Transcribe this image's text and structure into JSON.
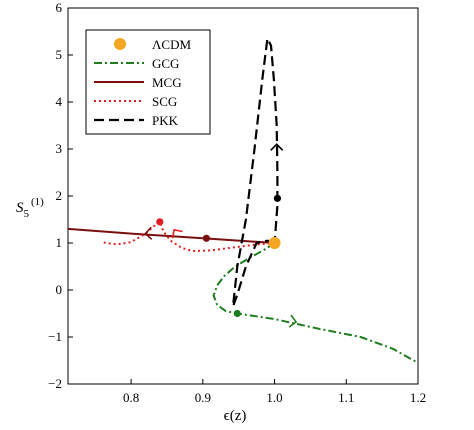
{
  "chart_data": {
    "type": "line",
    "title": "",
    "xlabel": "ϵ(z)",
    "ylabel": "S",
    "ylabel_sub": "5",
    "ylabel_sup": "(1)",
    "xlim": [
      0.712,
      1.2
    ],
    "ylim": [
      -2,
      6
    ],
    "xticks": [
      0.8,
      0.9,
      1.0,
      1.1,
      1.2
    ],
    "xtick_labels": [
      "0.8",
      "0.9",
      "1.0",
      "1.1",
      "1.2"
    ],
    "yticks": [
      -2,
      -1,
      0,
      1,
      2,
      3,
      4,
      5,
      6
    ],
    "ytick_labels": [
      "−2",
      "−1",
      "0",
      "1",
      "2",
      "3",
      "4",
      "5",
      "6"
    ],
    "grid": false,
    "legend_position": "top-left",
    "series": [
      {
        "key": "lcdm",
        "name": "ΛCDM",
        "color": "#f5a623",
        "style": "point",
        "x": [
          1.0
        ],
        "y": [
          1.0
        ]
      },
      {
        "key": "gcg",
        "name": "GCG",
        "color": "#1e7d1e",
        "style": "dashdot",
        "x": [
          1.0,
          0.985,
          0.965,
          0.945,
          0.93,
          0.92,
          0.915,
          0.92,
          0.932,
          0.948,
          1.0,
          1.06,
          1.12,
          1.165,
          1.2
        ],
        "y": [
          1.0,
          0.85,
          0.68,
          0.5,
          0.3,
          0.1,
          -0.12,
          -0.32,
          -0.45,
          -0.5,
          -0.62,
          -0.82,
          -1.0,
          -1.25,
          -1.55
        ]
      },
      {
        "key": "mcg",
        "name": "MCG",
        "color": "#7a0f0f",
        "style": "solid",
        "x": [
          0.712,
          0.8,
          0.9,
          1.0
        ],
        "y": [
          1.3,
          1.2,
          1.1,
          1.0
        ]
      },
      {
        "key": "scg",
        "name": "SCG",
        "color": "#e02020",
        "style": "dotted",
        "x": [
          1.0,
          0.97,
          0.94,
          0.91,
          0.885,
          0.87,
          0.855,
          0.845,
          0.84,
          0.835,
          0.82,
          0.8,
          0.78,
          0.765,
          0.76
        ],
        "y": [
          1.0,
          0.96,
          0.9,
          0.84,
          0.83,
          0.9,
          1.05,
          1.25,
          1.45,
          1.4,
          1.2,
          1.02,
          0.97,
          1.0,
          1.02
        ]
      },
      {
        "key": "pkk",
        "name": "PKK",
        "color": "#000000",
        "style": "dashed",
        "x": [
          1.0,
          0.99,
          0.975,
          0.96,
          0.948,
          0.942,
          0.948,
          0.96,
          0.972,
          0.983,
          0.99,
          0.995,
          0.999,
          1.003,
          1.004,
          1.004,
          1.0
        ],
        "y": [
          1.0,
          1.05,
          1.0,
          0.5,
          -0.1,
          -0.35,
          0.5,
          1.5,
          3.0,
          4.5,
          5.35,
          5.2,
          4.5,
          3.5,
          2.5,
          1.8,
          1.0
        ]
      }
    ],
    "markers": [
      {
        "series": "gcg",
        "x": 0.948,
        "y": -0.5
      },
      {
        "series": "mcg",
        "x": 0.905,
        "y": 1.1
      },
      {
        "series": "scg",
        "x": 0.84,
        "y": 1.45
      },
      {
        "series": "pkk",
        "x": 1.004,
        "y": 1.95
      }
    ]
  }
}
